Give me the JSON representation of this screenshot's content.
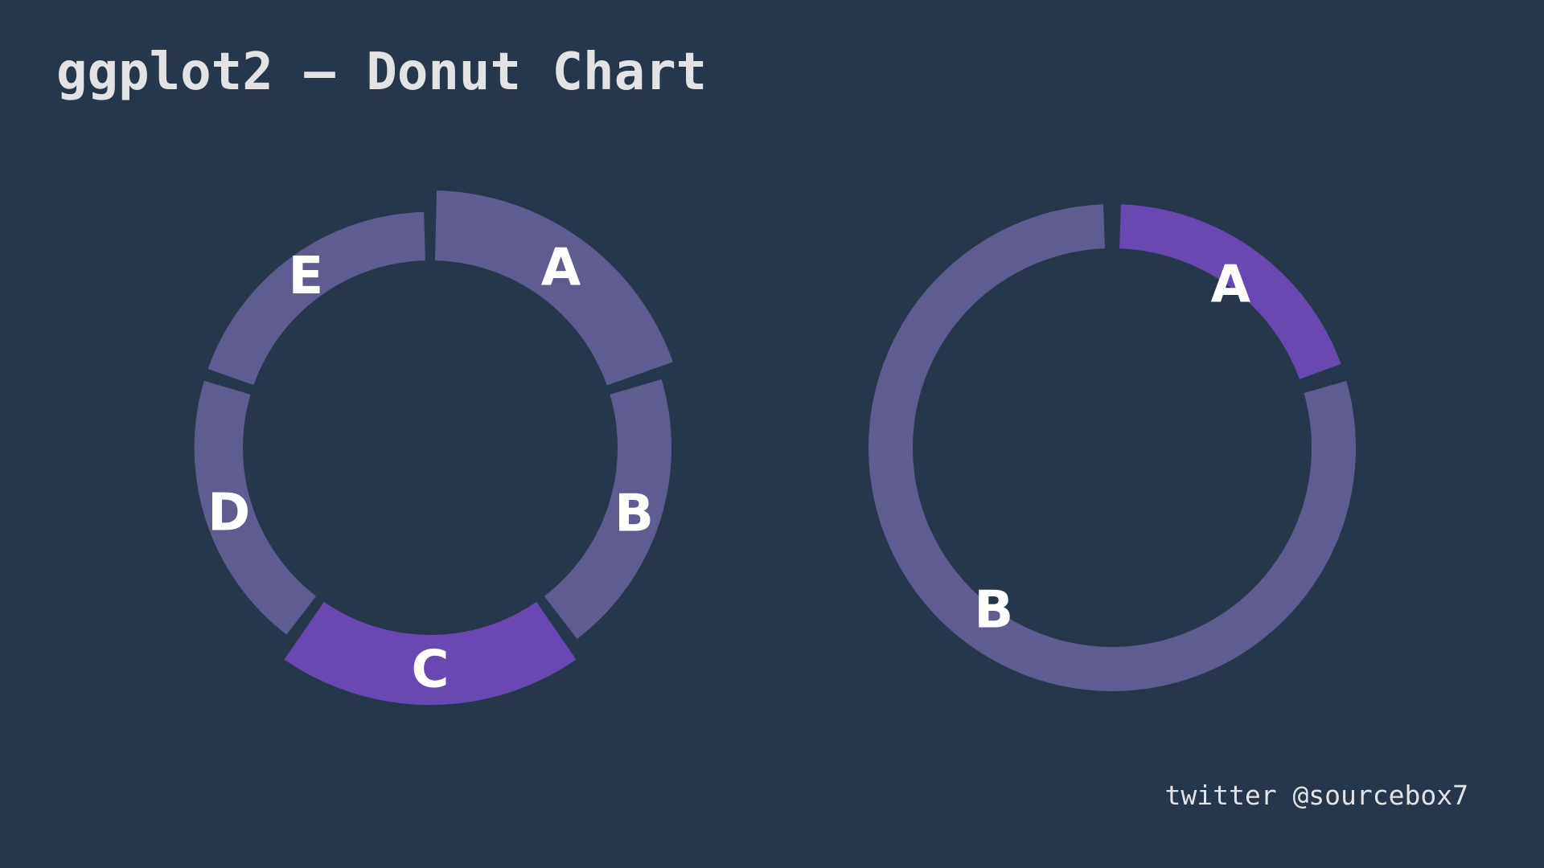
{
  "page": {
    "title": "ggplot2 – Donut Chart",
    "credit": "twitter @sourcebox7"
  },
  "colors": {
    "background": "#26364b",
    "segment_default": "#5f5c92",
    "segment_highlight": "#6a48b1",
    "label": "#ffffff",
    "text": "#e3e3e6"
  },
  "chart_data": [
    {
      "type": "pie",
      "variant": "donut",
      "title": "",
      "categories": [
        "A",
        "B",
        "C",
        "D",
        "E"
      ],
      "values": [
        20,
        20,
        20,
        20,
        20
      ],
      "highlighted": [
        "C"
      ],
      "segment_emphasis": [
        1.3,
        1.0,
        1.3,
        0.9,
        0.9
      ],
      "start": "12 o'clock",
      "direction": "clockwise"
    },
    {
      "type": "pie",
      "variant": "donut",
      "title": "",
      "categories": [
        "A",
        "B"
      ],
      "values": [
        20,
        80
      ],
      "highlighted": [
        "A"
      ],
      "start": "12 o'clock",
      "direction": "clockwise"
    }
  ]
}
